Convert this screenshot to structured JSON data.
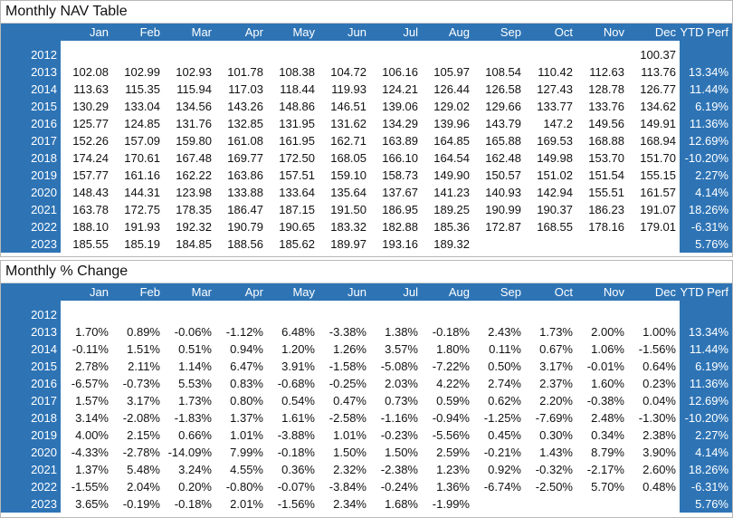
{
  "nav_table": {
    "title": "Monthly NAV Table",
    "headers": [
      "Jan",
      "Feb",
      "Mar",
      "Apr",
      "May",
      "Jun",
      "Jul",
      "Aug",
      "Sep",
      "Oct",
      "Nov",
      "Dec",
      "YTD Perf"
    ],
    "rows": [
      {
        "year": "2012",
        "values": [
          "",
          "",
          "",
          "",
          "",
          "",
          "",
          "",
          "",
          "",
          "",
          "100.37"
        ],
        "ytd": ""
      },
      {
        "year": "2013",
        "values": [
          "102.08",
          "102.99",
          "102.93",
          "101.78",
          "108.38",
          "104.72",
          "106.16",
          "105.97",
          "108.54",
          "110.42",
          "112.63",
          "113.76"
        ],
        "ytd": "13.34%"
      },
      {
        "year": "2014",
        "values": [
          "113.63",
          "115.35",
          "115.94",
          "117.03",
          "118.44",
          "119.93",
          "124.21",
          "126.44",
          "126.58",
          "127.43",
          "128.78",
          "126.77"
        ],
        "ytd": "11.44%"
      },
      {
        "year": "2015",
        "values": [
          "130.29",
          "133.04",
          "134.56",
          "143.26",
          "148.86",
          "146.51",
          "139.06",
          "129.02",
          "129.66",
          "133.77",
          "133.76",
          "134.62"
        ],
        "ytd": "6.19%"
      },
      {
        "year": "2016",
        "values": [
          "125.77",
          "124.85",
          "131.76",
          "132.85",
          "131.95",
          "131.62",
          "134.29",
          "139.96",
          "143.79",
          "147.2",
          "149.56",
          "149.91"
        ],
        "ytd": "11.36%"
      },
      {
        "year": "2017",
        "values": [
          "152.26",
          "157.09",
          "159.80",
          "161.08",
          "161.95",
          "162.71",
          "163.89",
          "164.85",
          "165.88",
          "169.53",
          "168.88",
          "168.94"
        ],
        "ytd": "12.69%"
      },
      {
        "year": "2018",
        "values": [
          "174.24",
          "170.61",
          "167.48",
          "169.77",
          "172.50",
          "168.05",
          "166.10",
          "164.54",
          "162.48",
          "149.98",
          "153.70",
          "151.70"
        ],
        "ytd": "-10.20%"
      },
      {
        "year": "2019",
        "values": [
          "157.77",
          "161.16",
          "162.22",
          "163.86",
          "157.51",
          "159.10",
          "158.73",
          "149.90",
          "150.57",
          "151.02",
          "151.54",
          "155.15"
        ],
        "ytd": "2.27%"
      },
      {
        "year": "2020",
        "values": [
          "148.43",
          "144.31",
          "123.98",
          "133.88",
          "133.64",
          "135.64",
          "137.67",
          "141.23",
          "140.93",
          "142.94",
          "155.51",
          "161.57"
        ],
        "ytd": "4.14%"
      },
      {
        "year": "2021",
        "values": [
          "163.78",
          "172.75",
          "178.35",
          "186.47",
          "187.15",
          "191.50",
          "186.95",
          "189.25",
          "190.99",
          "190.37",
          "186.23",
          "191.07"
        ],
        "ytd": "18.26%"
      },
      {
        "year": "2022",
        "values": [
          "188.10",
          "191.93",
          "192.32",
          "190.79",
          "190.65",
          "183.32",
          "182.88",
          "185.36",
          "172.87",
          "168.55",
          "178.16",
          "179.01"
        ],
        "ytd": "-6.31%"
      },
      {
        "year": "2023",
        "values": [
          "185.55",
          "185.19",
          "184.85",
          "188.56",
          "185.62",
          "189.97",
          "193.16",
          "189.32",
          "",
          "",
          "",
          ""
        ],
        "ytd": "5.76%"
      }
    ]
  },
  "pct_table": {
    "title": "Monthly % Change",
    "headers": [
      "Jan",
      "Feb",
      "Mar",
      "Apr",
      "May",
      "Jun",
      "Jul",
      "Aug",
      "Sep",
      "Oct",
      "Nov",
      "Dec",
      "YTD Perf"
    ],
    "rows": [
      {
        "year": "2012",
        "values": [
          "",
          "",
          "",
          "",
          "",
          "",
          "",
          "",
          "",
          "",
          "",
          ""
        ],
        "ytd": ""
      },
      {
        "year": "2013",
        "values": [
          "1.70%",
          "0.89%",
          "-0.06%",
          "-1.12%",
          "6.48%",
          "-3.38%",
          "1.38%",
          "-0.18%",
          "2.43%",
          "1.73%",
          "2.00%",
          "1.00%"
        ],
        "ytd": "13.34%"
      },
      {
        "year": "2014",
        "values": [
          "-0.11%",
          "1.51%",
          "0.51%",
          "0.94%",
          "1.20%",
          "1.26%",
          "3.57%",
          "1.80%",
          "0.11%",
          "0.67%",
          "1.06%",
          "-1.56%"
        ],
        "ytd": "11.44%"
      },
      {
        "year": "2015",
        "values": [
          "2.78%",
          "2.11%",
          "1.14%",
          "6.47%",
          "3.91%",
          "-1.58%",
          "-5.08%",
          "-7.22%",
          "0.50%",
          "3.17%",
          "-0.01%",
          "0.64%"
        ],
        "ytd": "6.19%"
      },
      {
        "year": "2016",
        "values": [
          "-6.57%",
          "-0.73%",
          "5.53%",
          "0.83%",
          "-0.68%",
          "-0.25%",
          "2.03%",
          "4.22%",
          "2.74%",
          "2.37%",
          "1.60%",
          "0.23%"
        ],
        "ytd": "11.36%"
      },
      {
        "year": "2017",
        "values": [
          "1.57%",
          "3.17%",
          "1.73%",
          "0.80%",
          "0.54%",
          "0.47%",
          "0.73%",
          "0.59%",
          "0.62%",
          "2.20%",
          "-0.38%",
          "0.04%"
        ],
        "ytd": "12.69%"
      },
      {
        "year": "2018",
        "values": [
          "3.14%",
          "-2.08%",
          "-1.83%",
          "1.37%",
          "1.61%",
          "-2.58%",
          "-1.16%",
          "-0.94%",
          "-1.25%",
          "-7.69%",
          "2.48%",
          "-1.30%"
        ],
        "ytd": "-10.20%"
      },
      {
        "year": "2019",
        "values": [
          "4.00%",
          "2.15%",
          "0.66%",
          "1.01%",
          "-3.88%",
          "1.01%",
          "-0.23%",
          "-5.56%",
          "0.45%",
          "0.30%",
          "0.34%",
          "2.38%"
        ],
        "ytd": "2.27%"
      },
      {
        "year": "2020",
        "values": [
          "-4.33%",
          "-2.78%",
          "-14.09%",
          "7.99%",
          "-0.18%",
          "1.50%",
          "1.50%",
          "2.59%",
          "-0.21%",
          "1.43%",
          "8.79%",
          "3.90%"
        ],
        "ytd": "4.14%"
      },
      {
        "year": "2021",
        "values": [
          "1.37%",
          "5.48%",
          "3.24%",
          "4.55%",
          "0.36%",
          "2.32%",
          "-2.38%",
          "1.23%",
          "0.92%",
          "-0.32%",
          "-2.17%",
          "2.60%"
        ],
        "ytd": "18.26%"
      },
      {
        "year": "2022",
        "values": [
          "-1.55%",
          "2.04%",
          "0.20%",
          "-0.80%",
          "-0.07%",
          "-3.84%",
          "-0.24%",
          "1.36%",
          "-6.74%",
          "-2.50%",
          "5.70%",
          "0.48%"
        ],
        "ytd": "-6.31%"
      },
      {
        "year": "2023",
        "values": [
          "3.65%",
          "-0.19%",
          "-0.18%",
          "2.01%",
          "-1.56%",
          "2.34%",
          "1.68%",
          "-1.99%",
          "",
          "",
          "",
          ""
        ],
        "ytd": "5.76%"
      }
    ]
  },
  "colors": {
    "header_bg": "#2e74b5",
    "header_text": "#ffffff",
    "cell_bg": "#ffffff"
  }
}
